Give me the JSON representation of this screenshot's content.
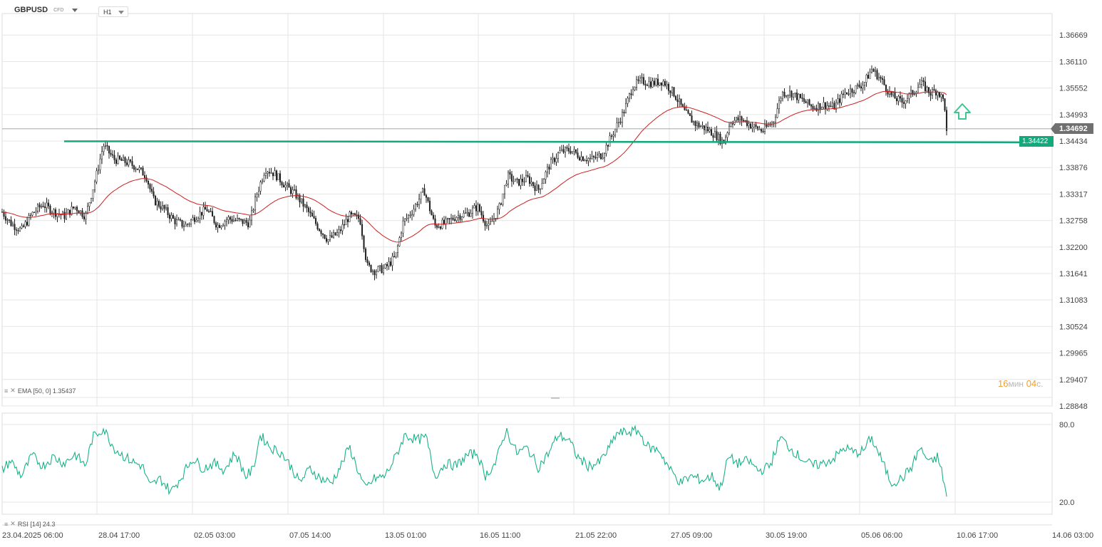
{
  "header": {
    "symbol": "GBPUSD",
    "symbol_type": "CFD",
    "timeframe": "H1"
  },
  "indicators": {
    "ema_label": "EMA [50, 0] 1.35437",
    "rsi_label": "RSI [14] 24.3"
  },
  "timer": {
    "minutes": "16",
    "min_unit": "мин",
    "seconds": "04",
    "sec_unit": "с."
  },
  "colors": {
    "candle": "#222222",
    "ema": "#cc2020",
    "rsi": "#1ab28a",
    "level": "#13a97c",
    "current_tag": "#707070",
    "level_tag": "#13a97c",
    "arrow": "#3cc690"
  },
  "chart_data": [
    {
      "type": "candlestick",
      "title": "",
      "symbol": "GBPUSD",
      "timeframe": "H1",
      "x_tick_labels": [
        "23.04.2025 06:00",
        "28.04 17:00",
        "02.05 03:00",
        "07.05 14:00",
        "13.05 01:00",
        "16.05 11:00",
        "21.05 22:00",
        "27.05 09:00",
        "30.05 19:00",
        "05.06 06:00",
        "10.06 17:00",
        "14.06 03:00"
      ],
      "y_tick_labels": [
        "1.36669",
        "1.36110",
        "1.35552",
        "1.34993",
        "1.34434",
        "1.33876",
        "1.33317",
        "1.32758",
        "1.32200",
        "1.31641",
        "1.31083",
        "1.30524",
        "1.29965",
        "1.29407",
        "1.28848"
      ],
      "ylim": [
        1.28848,
        1.37228
      ],
      "current_price": "1.34692",
      "horizontal_level": "1.34422",
      "approx_close_path": [
        {
          "x": 0,
          "y": 1.33
        },
        {
          "x": 15,
          "y": 1.327
        },
        {
          "x": 30,
          "y": 1.3255
        },
        {
          "x": 45,
          "y": 1.329
        },
        {
          "x": 60,
          "y": 1.331
        },
        {
          "x": 75,
          "y": 1.3295
        },
        {
          "x": 90,
          "y": 1.3285
        },
        {
          "x": 105,
          "y": 1.3305
        },
        {
          "x": 120,
          "y": 1.3285
        },
        {
          "x": 135,
          "y": 1.337
        },
        {
          "x": 145,
          "y": 1.3435
        },
        {
          "x": 160,
          "y": 1.3405
        },
        {
          "x": 175,
          "y": 1.34
        },
        {
          "x": 190,
          "y": 1.339
        },
        {
          "x": 205,
          "y": 1.337
        },
        {
          "x": 215,
          "y": 1.332
        },
        {
          "x": 230,
          "y": 1.33
        },
        {
          "x": 245,
          "y": 1.3275
        },
        {
          "x": 260,
          "y": 1.3265
        },
        {
          "x": 275,
          "y": 1.3285
        },
        {
          "x": 290,
          "y": 1.33
        },
        {
          "x": 305,
          "y": 1.3265
        },
        {
          "x": 320,
          "y": 1.328
        },
        {
          "x": 335,
          "y": 1.3275
        },
        {
          "x": 350,
          "y": 1.327
        },
        {
          "x": 360,
          "y": 1.333
        },
        {
          "x": 372,
          "y": 1.3385
        },
        {
          "x": 385,
          "y": 1.3375
        },
        {
          "x": 400,
          "y": 1.335
        },
        {
          "x": 415,
          "y": 1.333
        },
        {
          "x": 430,
          "y": 1.33
        },
        {
          "x": 445,
          "y": 1.3265
        },
        {
          "x": 460,
          "y": 1.3235
        },
        {
          "x": 475,
          "y": 1.325
        },
        {
          "x": 490,
          "y": 1.3285
        },
        {
          "x": 505,
          "y": 1.328
        },
        {
          "x": 515,
          "y": 1.318
        },
        {
          "x": 525,
          "y": 1.317
        },
        {
          "x": 540,
          "y": 1.3175
        },
        {
          "x": 555,
          "y": 1.32
        },
        {
          "x": 565,
          "y": 1.327
        },
        {
          "x": 580,
          "y": 1.33
        },
        {
          "x": 595,
          "y": 1.334
        },
        {
          "x": 610,
          "y": 1.3265
        },
        {
          "x": 625,
          "y": 1.327
        },
        {
          "x": 640,
          "y": 1.3285
        },
        {
          "x": 655,
          "y": 1.329
        },
        {
          "x": 670,
          "y": 1.3305
        },
        {
          "x": 685,
          "y": 1.326
        },
        {
          "x": 700,
          "y": 1.33
        },
        {
          "x": 712,
          "y": 1.337
        },
        {
          "x": 725,
          "y": 1.3355
        },
        {
          "x": 740,
          "y": 1.3365
        },
        {
          "x": 755,
          "y": 1.334
        },
        {
          "x": 770,
          "y": 1.339
        },
        {
          "x": 785,
          "y": 1.342
        },
        {
          "x": 800,
          "y": 1.3425
        },
        {
          "x": 815,
          "y": 1.341
        },
        {
          "x": 830,
          "y": 1.3405
        },
        {
          "x": 845,
          "y": 1.3415
        },
        {
          "x": 860,
          "y": 1.346
        },
        {
          "x": 875,
          "y": 1.3505
        },
        {
          "x": 888,
          "y": 1.356
        },
        {
          "x": 900,
          "y": 1.357
        },
        {
          "x": 915,
          "y": 1.3565
        },
        {
          "x": 930,
          "y": 1.357
        },
        {
          "x": 945,
          "y": 1.3545
        },
        {
          "x": 960,
          "y": 1.3505
        },
        {
          "x": 975,
          "y": 1.348
        },
        {
          "x": 990,
          "y": 1.347
        },
        {
          "x": 1005,
          "y": 1.3455
        },
        {
          "x": 1015,
          "y": 1.344
        },
        {
          "x": 1025,
          "y": 1.3485
        },
        {
          "x": 1040,
          "y": 1.349
        },
        {
          "x": 1055,
          "y": 1.3475
        },
        {
          "x": 1070,
          "y": 1.3465
        },
        {
          "x": 1085,
          "y": 1.3485
        },
        {
          "x": 1097,
          "y": 1.3545
        },
        {
          "x": 1110,
          "y": 1.3545
        },
        {
          "x": 1125,
          "y": 1.353
        },
        {
          "x": 1140,
          "y": 1.3515
        },
        {
          "x": 1155,
          "y": 1.352
        },
        {
          "x": 1170,
          "y": 1.3515
        },
        {
          "x": 1185,
          "y": 1.3545
        },
        {
          "x": 1200,
          "y": 1.3555
        },
        {
          "x": 1212,
          "y": 1.3565
        },
        {
          "x": 1223,
          "y": 1.3595
        },
        {
          "x": 1235,
          "y": 1.3575
        },
        {
          "x": 1250,
          "y": 1.354
        },
        {
          "x": 1265,
          "y": 1.3525
        },
        {
          "x": 1280,
          "y": 1.3545
        },
        {
          "x": 1292,
          "y": 1.3565
        },
        {
          "x": 1305,
          "y": 1.3545
        },
        {
          "x": 1315,
          "y": 1.355
        },
        {
          "x": 1325,
          "y": 1.3525
        },
        {
          "x": 1328,
          "y": 1.346
        }
      ]
    },
    {
      "type": "line",
      "name": "RSI [14]",
      "y_tick_labels": [
        "80.0",
        "20.0"
      ],
      "ylim": [
        20,
        80
      ],
      "last_value": "24.3",
      "approx_values": [
        {
          "x": 0,
          "y": 43
        },
        {
          "x": 15,
          "y": 52
        },
        {
          "x": 30,
          "y": 40
        },
        {
          "x": 45,
          "y": 56
        },
        {
          "x": 60,
          "y": 48
        },
        {
          "x": 75,
          "y": 55
        },
        {
          "x": 90,
          "y": 50
        },
        {
          "x": 105,
          "y": 57
        },
        {
          "x": 120,
          "y": 48
        },
        {
          "x": 130,
          "y": 70
        },
        {
          "x": 145,
          "y": 77
        },
        {
          "x": 160,
          "y": 62
        },
        {
          "x": 175,
          "y": 55
        },
        {
          "x": 190,
          "y": 50
        },
        {
          "x": 200,
          "y": 48
        },
        {
          "x": 210,
          "y": 32
        },
        {
          "x": 225,
          "y": 38
        },
        {
          "x": 240,
          "y": 28
        },
        {
          "x": 255,
          "y": 40
        },
        {
          "x": 270,
          "y": 54
        },
        {
          "x": 285,
          "y": 46
        },
        {
          "x": 300,
          "y": 50
        },
        {
          "x": 315,
          "y": 45
        },
        {
          "x": 330,
          "y": 58
        },
        {
          "x": 345,
          "y": 40
        },
        {
          "x": 355,
          "y": 45
        },
        {
          "x": 365,
          "y": 72
        },
        {
          "x": 380,
          "y": 62
        },
        {
          "x": 395,
          "y": 58
        },
        {
          "x": 410,
          "y": 46
        },
        {
          "x": 420,
          "y": 35
        },
        {
          "x": 435,
          "y": 46
        },
        {
          "x": 450,
          "y": 38
        },
        {
          "x": 465,
          "y": 35
        },
        {
          "x": 480,
          "y": 50
        },
        {
          "x": 490,
          "y": 63
        },
        {
          "x": 500,
          "y": 48
        },
        {
          "x": 512,
          "y": 30
        },
        {
          "x": 525,
          "y": 38
        },
        {
          "x": 540,
          "y": 40
        },
        {
          "x": 555,
          "y": 55
        },
        {
          "x": 568,
          "y": 72
        },
        {
          "x": 585,
          "y": 68
        },
        {
          "x": 598,
          "y": 70
        },
        {
          "x": 610,
          "y": 40
        },
        {
          "x": 625,
          "y": 50
        },
        {
          "x": 640,
          "y": 48
        },
        {
          "x": 655,
          "y": 56
        },
        {
          "x": 670,
          "y": 58
        },
        {
          "x": 680,
          "y": 40
        },
        {
          "x": 695,
          "y": 50
        },
        {
          "x": 710,
          "y": 76
        },
        {
          "x": 725,
          "y": 58
        },
        {
          "x": 740,
          "y": 62
        },
        {
          "x": 755,
          "y": 47
        },
        {
          "x": 770,
          "y": 58
        },
        {
          "x": 783,
          "y": 72
        },
        {
          "x": 798,
          "y": 68
        },
        {
          "x": 810,
          "y": 55
        },
        {
          "x": 825,
          "y": 48
        },
        {
          "x": 840,
          "y": 50
        },
        {
          "x": 855,
          "y": 62
        },
        {
          "x": 865,
          "y": 73
        },
        {
          "x": 880,
          "y": 74
        },
        {
          "x": 895,
          "y": 75
        },
        {
          "x": 910,
          "y": 62
        },
        {
          "x": 925,
          "y": 60
        },
        {
          "x": 940,
          "y": 45
        },
        {
          "x": 955,
          "y": 35
        },
        {
          "x": 970,
          "y": 40
        },
        {
          "x": 985,
          "y": 37
        },
        {
          "x": 1000,
          "y": 40
        },
        {
          "x": 1010,
          "y": 30
        },
        {
          "x": 1022,
          "y": 55
        },
        {
          "x": 1035,
          "y": 50
        },
        {
          "x": 1050,
          "y": 52
        },
        {
          "x": 1065,
          "y": 44
        },
        {
          "x": 1080,
          "y": 48
        },
        {
          "x": 1095,
          "y": 70
        },
        {
          "x": 1108,
          "y": 62
        },
        {
          "x": 1122,
          "y": 55
        },
        {
          "x": 1140,
          "y": 48
        },
        {
          "x": 1155,
          "y": 50
        },
        {
          "x": 1170,
          "y": 54
        },
        {
          "x": 1185,
          "y": 62
        },
        {
          "x": 1200,
          "y": 58
        },
        {
          "x": 1212,
          "y": 60
        },
        {
          "x": 1222,
          "y": 70
        },
        {
          "x": 1235,
          "y": 55
        },
        {
          "x": 1250,
          "y": 35
        },
        {
          "x": 1265,
          "y": 38
        },
        {
          "x": 1280,
          "y": 48
        },
        {
          "x": 1290,
          "y": 62
        },
        {
          "x": 1305,
          "y": 50
        },
        {
          "x": 1315,
          "y": 55
        },
        {
          "x": 1322,
          "y": 42
        },
        {
          "x": 1328,
          "y": 24.3
        }
      ]
    }
  ]
}
